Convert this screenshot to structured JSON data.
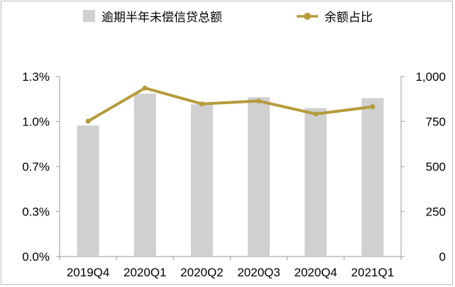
{
  "chart_data": {
    "type": "bar+line",
    "categories": [
      "2019Q4",
      "2020Q1",
      "2020Q2",
      "2020Q3",
      "2020Q4",
      "2021Q1"
    ],
    "series": [
      {
        "name": "逾期半年未偿信贷总额",
        "type": "bar",
        "axis": "right",
        "color": "#d0d0d0",
        "values": [
          728,
          905,
          845,
          885,
          825,
          880
        ]
      },
      {
        "name": "余额占比",
        "type": "line",
        "axis": "left",
        "color": "#b59b3c",
        "values": [
          0.0094,
          0.0117,
          0.0106,
          0.0108,
          0.0099,
          0.0104
        ]
      }
    ],
    "left_axis": {
      "ticks": [
        "0.0%",
        "0.3%",
        "0.7%",
        "1.0%",
        "1.3%"
      ],
      "ylim": [
        0,
        0.0125
      ]
    },
    "right_axis": {
      "ticks": [
        "0",
        "250",
        "500",
        "750",
        "1,000"
      ],
      "ylim": [
        0,
        1000
      ]
    },
    "legend_position": "top",
    "grid": false
  }
}
